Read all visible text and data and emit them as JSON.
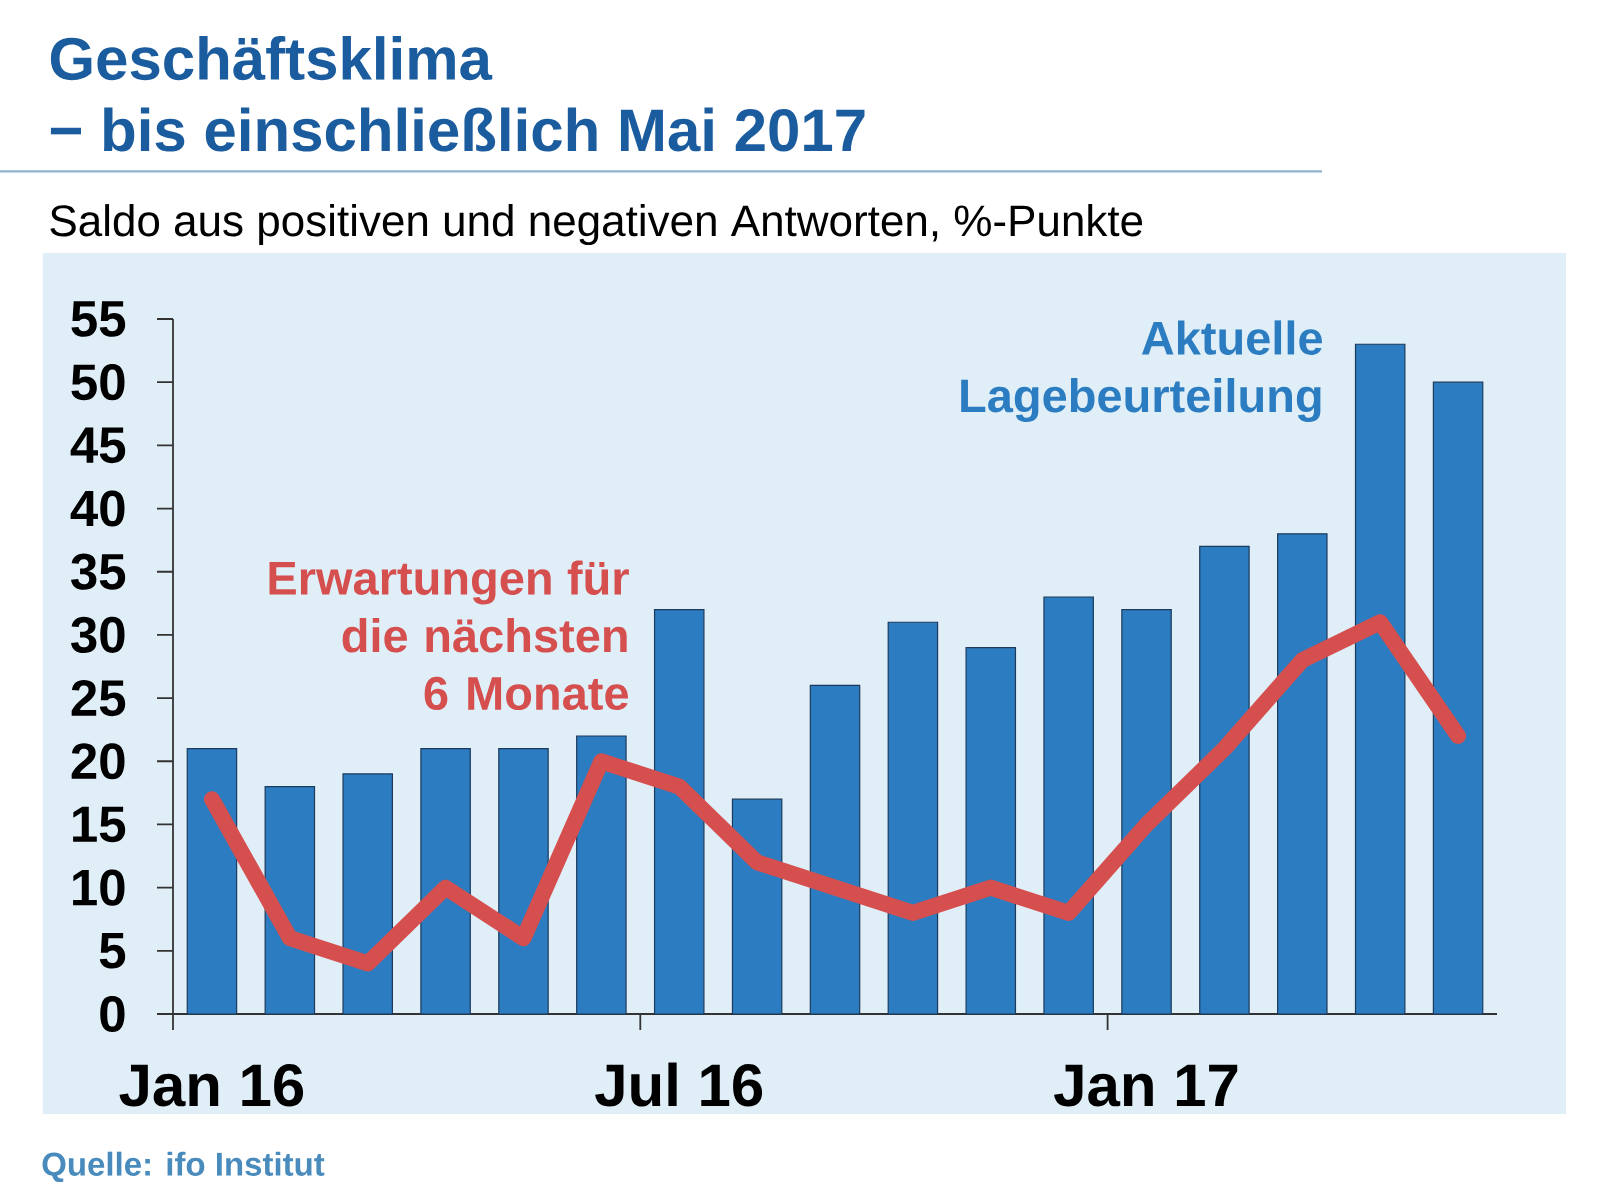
{
  "chart_data": {
    "type": "bar",
    "title": "Geschäftsklima",
    "subtitle": "− bis einschließlich Mai 2017",
    "ylabel": "Saldo aus positiven und negativen Antworten, %-Punkte",
    "annotations": [
      "Quelle: ifo Institut"
    ],
    "categories": [
      "Jan 16",
      null,
      null,
      null,
      null,
      null,
      "Jul 16",
      null,
      null,
      null,
      null,
      null,
      "Jan 17",
      null,
      null,
      null,
      null
    ],
    "series": [
      {
        "name": "Aktuelle Lagebeurteilung",
        "color": "#2b7cc0",
        "values": [
          21,
          18,
          19,
          21,
          21,
          22,
          32,
          17,
          26,
          31,
          29,
          33,
          32,
          37,
          38,
          53,
          50
        ]
      },
      {
        "name": "Erwartungen für die nächsten 6 Monate",
        "type": "line",
        "color": "#d64f4f",
        "values": [
          17,
          6,
          4,
          10,
          6,
          20,
          18,
          12,
          10,
          8,
          10,
          8,
          15,
          21,
          28,
          31,
          22
        ]
      }
    ],
    "ylim": [
      0,
      55
    ],
    "yticks": [
      0,
      5,
      10,
      15,
      20,
      25,
      30,
      35,
      40,
      45,
      50,
      55
    ]
  }
}
